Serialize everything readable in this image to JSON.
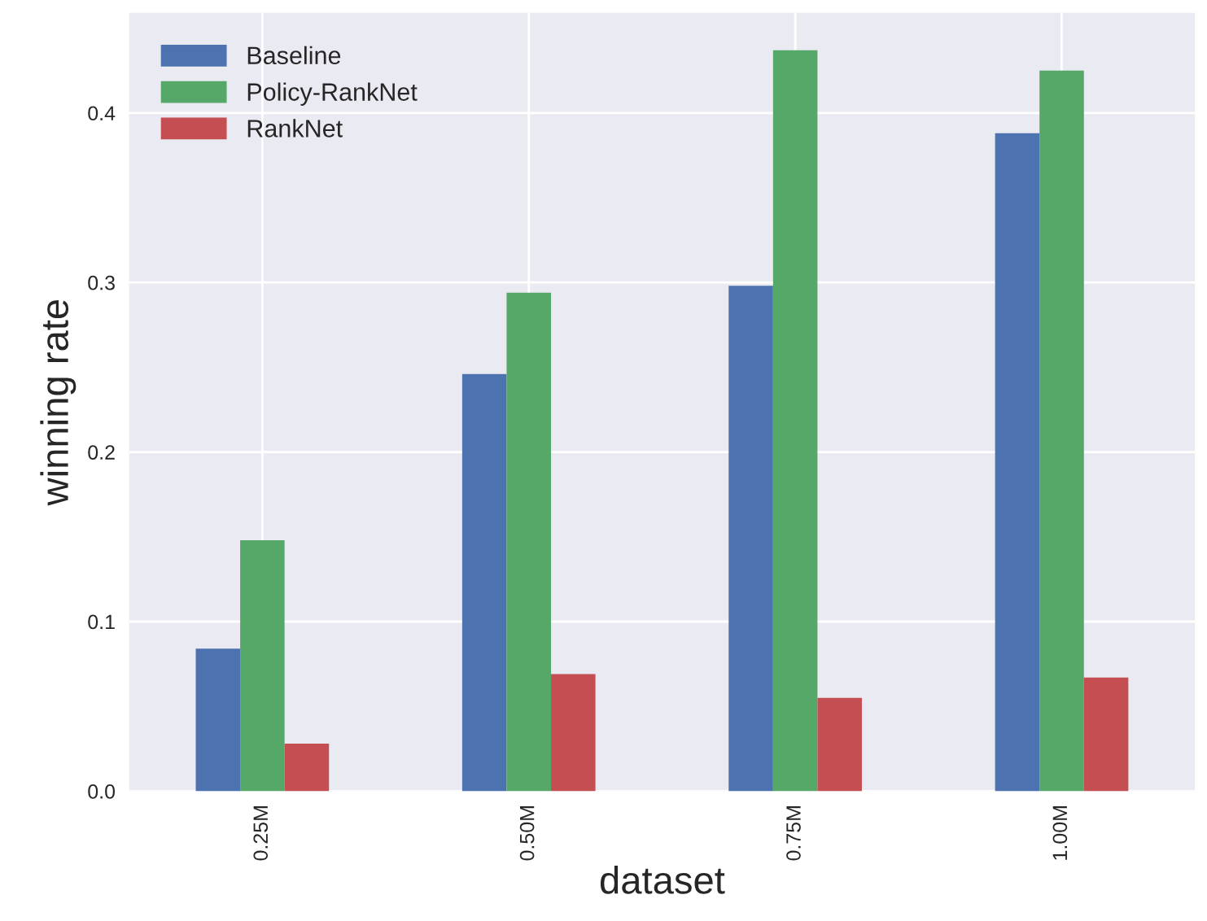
{
  "chart_data": {
    "type": "bar",
    "xlabel": "dataset",
    "ylabel": "winning rate",
    "categories": [
      "0.25M",
      "0.50M",
      "0.75M",
      "1.00M"
    ],
    "series": [
      {
        "name": "Baseline",
        "color": "#4c72b0",
        "values": [
          0.084,
          0.246,
          0.298,
          0.388
        ]
      },
      {
        "name": "Policy-RankNet",
        "color": "#55a868",
        "values": [
          0.148,
          0.294,
          0.437,
          0.425
        ]
      },
      {
        "name": "RankNet",
        "color": "#c44e52",
        "values": [
          0.028,
          0.069,
          0.055,
          0.067
        ]
      }
    ],
    "ylim": [
      0,
      0.459
    ],
    "yticks": [
      {
        "value": 0,
        "label": "0.0"
      },
      0.1,
      0.2,
      0.3,
      0.4
    ],
    "grid": true,
    "legend": "top left"
  }
}
